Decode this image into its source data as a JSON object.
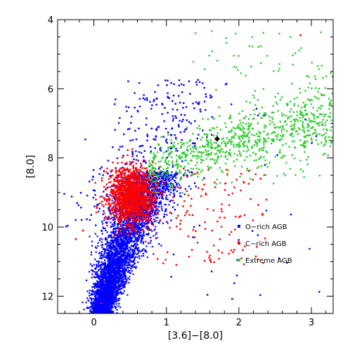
{
  "chart_data": {
    "type": "scatter",
    "xlabel": "[3.6]−[8.0]",
    "ylabel": "[8.0]",
    "xlim": [
      -0.5,
      3.3
    ],
    "ylim": [
      12.5,
      4.0
    ],
    "y_inverted": true,
    "x_ticks": [
      0,
      1,
      2,
      3
    ],
    "y_ticks": [
      4,
      6,
      8,
      10,
      12
    ],
    "x_tick_labels": [
      "0",
      "1",
      "2",
      "3"
    ],
    "y_tick_labels": [
      "4",
      "6",
      "8",
      "10",
      "12"
    ],
    "grid": false,
    "legend_position": "right, lower-middle",
    "series": [
      {
        "name": "O−rich AGB",
        "color": "#0000ff",
        "approx_count": 6000,
        "description_points": [
          [
            0.05,
            12.4
          ],
          [
            0.1,
            12.0
          ],
          [
            0.15,
            11.5
          ],
          [
            0.2,
            11.0
          ],
          [
            0.25,
            10.5
          ],
          [
            0.3,
            10.0
          ],
          [
            0.35,
            9.5
          ],
          [
            0.4,
            9.0
          ],
          [
            0.5,
            8.5
          ],
          [
            0.6,
            8.0
          ],
          [
            0.7,
            7.5
          ],
          [
            0.8,
            7.0
          ],
          [
            0.9,
            6.5
          ],
          [
            1.2,
            5.8
          ],
          [
            1.3,
            6.0
          ]
        ]
      },
      {
        "name": "C−rich AGB",
        "color": "#ff0000",
        "approx_count": 1800,
        "description_points": [
          [
            0.3,
            9.6
          ],
          [
            0.4,
            9.3
          ],
          [
            0.5,
            9.0
          ],
          [
            0.6,
            8.9
          ],
          [
            0.7,
            9.2
          ],
          [
            0.5,
            9.8
          ],
          [
            0.4,
            10.0
          ],
          [
            0.8,
            9.5
          ],
          [
            1.2,
            9.0
          ],
          [
            2.3,
            8.6
          ],
          [
            2.85,
            4.45
          ],
          [
            1.0,
            10.5
          ],
          [
            1.3,
            10.8
          ]
        ]
      },
      {
        "name": "Extreme AGB",
        "color": "#33cc33",
        "approx_count": 900,
        "description_points": [
          [
            0.8,
            8.2
          ],
          [
            1.0,
            8.0
          ],
          [
            1.2,
            7.8
          ],
          [
            1.5,
            7.5
          ],
          [
            1.8,
            7.2
          ],
          [
            2.0,
            7.0
          ],
          [
            2.3,
            6.8
          ],
          [
            2.6,
            6.6
          ],
          [
            3.0,
            6.3
          ],
          [
            3.2,
            5.8
          ],
          [
            1.9,
            4.4
          ],
          [
            1.9,
            5.2
          ]
        ]
      }
    ],
    "marked_point": {
      "x": 1.7,
      "y": 7.45,
      "color": "#000000",
      "shape": "diamond"
    }
  }
}
